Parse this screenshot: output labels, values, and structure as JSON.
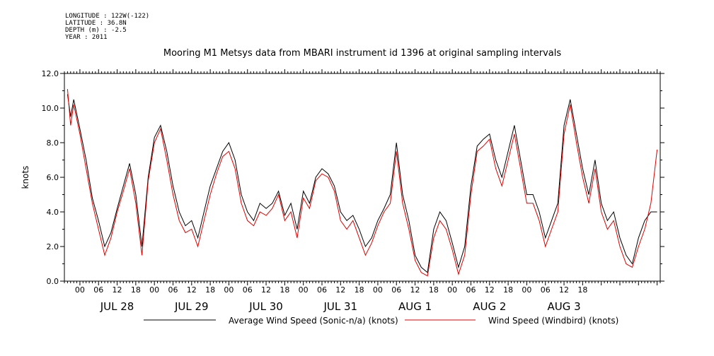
{
  "meta": {
    "longitude": "LONGITUDE : 122W(-122)",
    "latitude": "LATITUDE : 36.8N",
    "depth": "DEPTH (m) : -2.5",
    "year": "YEAR : 2011"
  },
  "chart_data": {
    "type": "line",
    "title": "Mooring M1 Metsys data from MBARI instrument id 1396 at original sampling intervals",
    "ylabel": "knots",
    "xlabel": "",
    "ylim": [
      0,
      12
    ],
    "xlim": [
      -5,
      187
    ],
    "yticks": [
      "0.0",
      "2.0",
      "4.0",
      "6.0",
      "8.0",
      "10.0",
      "12.0"
    ],
    "hour_ticks": [
      "00",
      "06",
      "12",
      "18",
      "00",
      "06",
      "12",
      "18",
      "00",
      "06",
      "12",
      "18",
      "00",
      "06",
      "12",
      "18",
      "00",
      "06",
      "12",
      "18",
      "00",
      "06",
      "12",
      "18",
      "00",
      "06",
      "12",
      "18"
    ],
    "day_labels": [
      "JUL 28",
      "JUL 29",
      "JUL 30",
      "JUL 31",
      "AUG  1",
      "AUG  2",
      "AUG  3"
    ],
    "x_unit": "hours from 2011-07-28 00:00",
    "legend": [
      "Average Wind Speed (Sonic-n/a) (knots)",
      "Wind Speed (Windbird) (knots)"
    ],
    "series": [
      {
        "name": "Average Wind Speed (Sonic-n/a) (knots)",
        "color": "#000000",
        "x": [
          -4,
          -3,
          -2,
          0,
          2,
          4,
          6,
          8,
          10,
          12,
          14,
          16,
          18,
          20,
          22,
          24,
          26,
          28,
          30,
          32,
          34,
          36,
          38,
          40,
          42,
          44,
          46,
          48,
          50,
          52,
          54,
          56,
          58,
          60,
          62,
          64,
          66,
          68,
          70,
          72,
          74,
          76,
          78,
          80,
          82,
          84,
          86,
          88,
          90,
          92,
          94,
          96,
          98,
          100,
          102,
          104,
          106,
          108,
          110,
          112,
          114,
          116,
          118,
          120,
          122,
          124,
          126,
          128,
          130,
          132,
          134,
          136,
          138,
          140,
          142,
          144,
          146,
          148,
          150,
          152,
          154,
          156,
          158,
          160,
          162,
          164,
          166,
          168,
          170,
          172,
          174,
          176,
          178,
          180,
          182,
          184,
          186
        ],
        "y": [
          10.8,
          9.5,
          10.5,
          8.8,
          7.0,
          4.8,
          3.5,
          2.0,
          2.8,
          4.2,
          5.5,
          6.8,
          5.0,
          2.0,
          6.0,
          8.3,
          9.0,
          7.5,
          5.5,
          4.0,
          3.2,
          3.5,
          2.5,
          4.0,
          5.5,
          6.5,
          7.5,
          8.0,
          7.0,
          5.0,
          4.0,
          3.5,
          4.5,
          4.2,
          4.5,
          5.2,
          3.8,
          4.5,
          3.0,
          5.2,
          4.5,
          6.0,
          6.5,
          6.2,
          5.5,
          4.0,
          3.5,
          3.8,
          3.0,
          2.0,
          2.5,
          3.5,
          4.2,
          5.0,
          8.0,
          5.0,
          3.5,
          1.5,
          0.8,
          0.5,
          3.0,
          4.0,
          3.5,
          2.2,
          0.8,
          2.0,
          5.5,
          7.8,
          8.2,
          8.5,
          7.0,
          6.0,
          7.5,
          9.0,
          7.0,
          5.0,
          5.0,
          4.0,
          2.5,
          3.5,
          4.5,
          9.0,
          10.5,
          8.5,
          6.5,
          5.0,
          7.0,
          4.5,
          3.5,
          4.0,
          2.5,
          1.5,
          1.0,
          2.5,
          3.5,
          4.0,
          4.0
        ]
      },
      {
        "name": "Wind Speed (Windbird) (knots)",
        "color": "#e00000",
        "x": [
          -4,
          -3,
          -2,
          0,
          2,
          4,
          6,
          8,
          10,
          12,
          14,
          16,
          18,
          20,
          22,
          24,
          26,
          28,
          30,
          32,
          34,
          36,
          38,
          40,
          42,
          44,
          46,
          48,
          50,
          52,
          54,
          56,
          58,
          60,
          62,
          64,
          66,
          68,
          70,
          72,
          74,
          76,
          78,
          80,
          82,
          84,
          86,
          88,
          90,
          92,
          94,
          96,
          98,
          100,
          102,
          104,
          106,
          108,
          110,
          112,
          114,
          116,
          118,
          120,
          122,
          124,
          126,
          128,
          130,
          132,
          134,
          136,
          138,
          140,
          142,
          144,
          146,
          148,
          150,
          152,
          154,
          156,
          158,
          160,
          162,
          164,
          166,
          168,
          170,
          172,
          174,
          176,
          178,
          180,
          182,
          184,
          186
        ],
        "y": [
          11.1,
          9.0,
          10.2,
          8.5,
          6.5,
          4.5,
          3.0,
          1.5,
          2.5,
          4.0,
          5.2,
          6.5,
          4.5,
          1.5,
          5.8,
          8.0,
          8.8,
          7.0,
          5.0,
          3.5,
          2.8,
          3.0,
          2.0,
          3.5,
          5.0,
          6.2,
          7.2,
          7.5,
          6.5,
          4.5,
          3.5,
          3.2,
          4.0,
          3.8,
          4.2,
          5.0,
          3.5,
          4.0,
          2.5,
          4.8,
          4.2,
          5.8,
          6.2,
          6.0,
          5.2,
          3.5,
          3.0,
          3.5,
          2.5,
          1.5,
          2.2,
          3.2,
          4.0,
          4.5,
          7.5,
          4.5,
          3.0,
          1.2,
          0.5,
          0.3,
          2.5,
          3.5,
          3.0,
          1.8,
          0.4,
          1.5,
          5.0,
          7.5,
          7.8,
          8.2,
          6.5,
          5.5,
          7.0,
          8.5,
          6.5,
          4.5,
          4.5,
          3.5,
          2.0,
          3.0,
          4.0,
          8.5,
          10.2,
          8.0,
          6.0,
          4.5,
          6.5,
          4.0,
          3.0,
          3.5,
          2.0,
          1.0,
          0.8,
          2.0,
          3.0,
          4.5,
          7.6
        ]
      }
    ]
  }
}
